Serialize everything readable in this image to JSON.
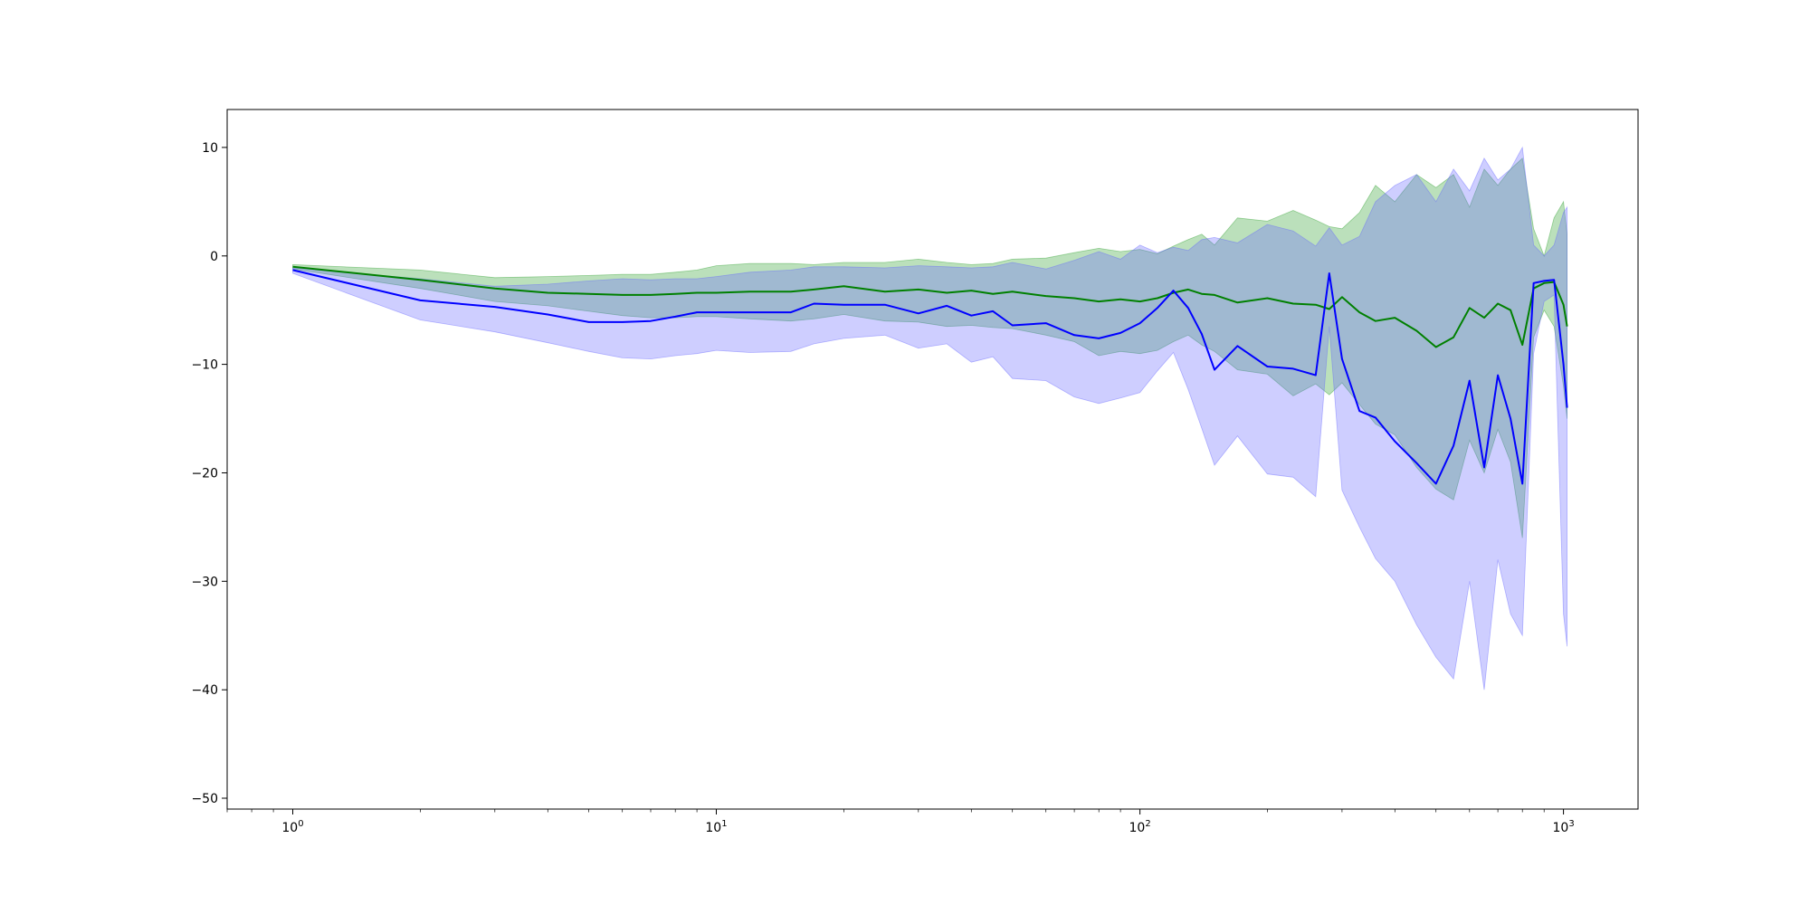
{
  "chart_data": {
    "type": "line",
    "title": "",
    "xlabel": "",
    "ylabel": "",
    "xscale": "log",
    "xlim": [
      0.7,
      1500
    ],
    "ylim": [
      -51,
      13.5
    ],
    "grid": false,
    "legend": "none",
    "x_ticks": [
      {
        "value": 1,
        "base": "10",
        "exp": "0"
      },
      {
        "value": 10,
        "base": "10",
        "exp": "1"
      },
      {
        "value": 100,
        "base": "10",
        "exp": "2"
      },
      {
        "value": 1000,
        "base": "10",
        "exp": "3"
      }
    ],
    "y_ticks": [
      {
        "value": 10,
        "label": "10"
      },
      {
        "value": 0,
        "label": "0"
      },
      {
        "value": -10,
        "label": "−10"
      },
      {
        "value": -20,
        "label": "−20"
      },
      {
        "value": -30,
        "label": "−30"
      },
      {
        "value": -40,
        "label": "−40"
      },
      {
        "value": -50,
        "label": "−50"
      }
    ],
    "series": [
      {
        "color": "#008000",
        "band_color": "#2ca02c",
        "x": [
          1,
          2,
          3,
          4,
          5,
          6,
          7,
          8,
          9,
          10,
          12,
          15,
          17,
          20,
          25,
          30,
          35,
          40,
          45,
          50,
          60,
          70,
          80,
          90,
          100,
          110,
          120,
          130,
          140,
          150,
          170,
          200,
          230,
          260,
          280,
          300,
          330,
          360,
          400,
          450,
          500,
          550,
          600,
          650,
          700,
          750,
          800,
          850,
          900,
          950,
          1000,
          1020
        ],
        "mean": [
          -1.0,
          -2.2,
          -3.0,
          -3.4,
          -3.5,
          -3.6,
          -3.6,
          -3.5,
          -3.4,
          -3.4,
          -3.3,
          -3.3,
          -3.1,
          -2.8,
          -3.3,
          -3.1,
          -3.4,
          -3.2,
          -3.5,
          -3.3,
          -3.7,
          -3.9,
          -4.2,
          -4.0,
          -4.2,
          -3.9,
          -3.4,
          -3.1,
          -3.5,
          -3.6,
          -4.3,
          -3.9,
          -4.4,
          -4.5,
          -4.9,
          -3.8,
          -5.2,
          -6.0,
          -5.7,
          -6.9,
          -8.4,
          -7.5,
          -4.8,
          -5.7,
          -4.4,
          -5.0,
          -8.2,
          -3.0,
          -2.5,
          -2.4,
          -4.5,
          -6.5
        ],
        "upper": [
          -0.8,
          -1.3,
          -2.0,
          -1.9,
          -1.8,
          -1.7,
          -1.7,
          -1.5,
          -1.3,
          -0.9,
          -0.7,
          -0.7,
          -0.8,
          -0.6,
          -0.6,
          -0.3,
          -0.6,
          -0.8,
          -0.7,
          -0.3,
          -0.2,
          0.3,
          0.7,
          0.4,
          0.6,
          0.2,
          0.9,
          1.5,
          2.0,
          1.0,
          3.5,
          3.2,
          4.2,
          3.3,
          2.7,
          2.5,
          4.0,
          6.5,
          5.0,
          7.5,
          6.3,
          7.5,
          4.5,
          8.0,
          6.5,
          8.0,
          9.0,
          2.5,
          0.0,
          3.5,
          5.0,
          2.0
        ],
        "lower": [
          -1.2,
          -3.0,
          -4.2,
          -4.6,
          -5.1,
          -5.5,
          -5.7,
          -5.7,
          -5.6,
          -5.6,
          -5.8,
          -6.0,
          -5.8,
          -5.4,
          -6.0,
          -6.1,
          -6.5,
          -6.4,
          -6.6,
          -6.7,
          -7.3,
          -7.9,
          -9.2,
          -8.8,
          -9.0,
          -8.7,
          -7.9,
          -7.3,
          -8.2,
          -8.8,
          -10.5,
          -10.9,
          -12.9,
          -11.8,
          -12.8,
          -11.7,
          -13.7,
          -15.5,
          -16.5,
          -19.5,
          -21.5,
          -22.5,
          -17.0,
          -20.0,
          -16.0,
          -19.0,
          -26.0,
          -7.5,
          -5.0,
          -6.5,
          -12.0,
          -15.0
        ]
      },
      {
        "color": "#0000ff",
        "band_color": "#6666ff",
        "x": [
          1,
          2,
          3,
          4,
          5,
          6,
          7,
          8,
          9,
          10,
          12,
          15,
          17,
          20,
          25,
          30,
          35,
          40,
          45,
          50,
          60,
          70,
          80,
          90,
          100,
          110,
          120,
          130,
          140,
          150,
          170,
          200,
          230,
          260,
          280,
          300,
          330,
          360,
          400,
          450,
          500,
          550,
          600,
          650,
          700,
          750,
          800,
          850,
          900,
          950,
          1000,
          1020
        ],
        "mean": [
          -1.3,
          -4.1,
          -4.7,
          -5.4,
          -6.1,
          -6.1,
          -6.0,
          -5.6,
          -5.2,
          -5.2,
          -5.2,
          -5.2,
          -4.4,
          -4.5,
          -4.5,
          -5.3,
          -4.6,
          -5.5,
          -5.1,
          -6.4,
          -6.2,
          -7.3,
          -7.6,
          -7.1,
          -6.2,
          -4.8,
          -3.2,
          -4.8,
          -7.2,
          -10.5,
          -8.3,
          -10.2,
          -10.4,
          -11.0,
          -1.6,
          -9.5,
          -14.3,
          -14.9,
          -17.1,
          -19.1,
          -21.0,
          -17.5,
          -11.5,
          -19.5,
          -11.0,
          -15.0,
          -21.0,
          -2.5,
          -2.3,
          -2.2,
          -10.0,
          -14.0
        ],
        "upper": [
          -1.1,
          -2.1,
          -2.8,
          -2.6,
          -2.3,
          -2.1,
          -2.2,
          -2.1,
          -2.1,
          -1.9,
          -1.5,
          -1.3,
          -1.0,
          -1.0,
          -1.1,
          -0.9,
          -1.0,
          -1.1,
          -1.0,
          -0.6,
          -1.2,
          -0.4,
          0.4,
          -0.3,
          1.0,
          0.3,
          0.8,
          0.5,
          1.5,
          1.7,
          1.2,
          2.9,
          2.3,
          0.9,
          2.6,
          1.0,
          1.8,
          5.0,
          6.5,
          7.5,
          5.0,
          8.0,
          6.0,
          9.0,
          7.0,
          8.0,
          10.0,
          1.0,
          0.0,
          1.0,
          4.0,
          4.5
        ],
        "lower": [
          -1.6,
          -5.9,
          -7.0,
          -8.0,
          -8.8,
          -9.4,
          -9.5,
          -9.2,
          -9.0,
          -8.7,
          -8.9,
          -8.8,
          -8.1,
          -7.6,
          -7.3,
          -8.5,
          -8.1,
          -9.8,
          -9.3,
          -11.3,
          -11.5,
          -13.0,
          -13.6,
          -13.1,
          -12.6,
          -10.6,
          -8.9,
          -12.3,
          -15.9,
          -19.3,
          -16.6,
          -20.1,
          -20.4,
          -22.2,
          -6.5,
          -21.6,
          -25.0,
          -27.9,
          -30.0,
          -34.0,
          -37.0,
          -39.0,
          -30.0,
          -40.0,
          -28.0,
          -33.0,
          -35.0,
          -9.0,
          -4.2,
          -3.6,
          -33.0,
          -36.0
        ]
      }
    ]
  }
}
